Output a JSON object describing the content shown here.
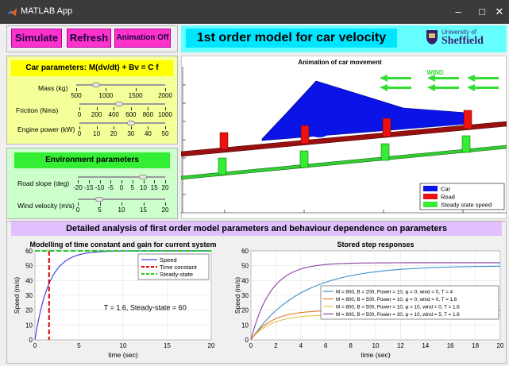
{
  "window": {
    "title": "MATLAB App",
    "minimize": "–",
    "maximize": "□",
    "close": "✕"
  },
  "buttons": {
    "simulate": "Simulate",
    "refresh": "Refresh",
    "animation": "Animation Off"
  },
  "header": {
    "title": "1st order model for car velocity",
    "logo_line1": "University of",
    "logo_line2": "Sheffield"
  },
  "car_params": {
    "title": "Car parameters: M(dv/dt) + Bv = C f",
    "mass": {
      "label": "Mass (kg)",
      "ticks": [
        "500",
        "1000",
        "1500",
        "2000"
      ]
    },
    "friction": {
      "label": "Friction (Nms)",
      "ticks": [
        "0",
        "200",
        "400",
        "600",
        "800",
        "1000"
      ]
    },
    "engine": {
      "label": "Engine power (kW)",
      "ticks": [
        "0",
        "10",
        "20",
        "30",
        "40",
        "50"
      ]
    }
  },
  "env_params": {
    "title": "Environment parameters",
    "slope": {
      "label": "Road slope (deg)",
      "ticks": [
        "-20",
        "-15",
        "-10",
        "-5",
        "0",
        "5",
        "10",
        "15",
        "20"
      ]
    },
    "wind": {
      "label": "Wind velocity (m/s)",
      "ticks": [
        "0",
        "5",
        "10",
        "15",
        "20"
      ]
    }
  },
  "animation": {
    "title": "Animation of car movement",
    "wind_label": "WIND",
    "legend": [
      "Car",
      "Road",
      "Steady state speed"
    ]
  },
  "analysis": {
    "title": "Detailed analysis of first order model parameters and behaviour dependence on parameters"
  },
  "chart_data": [
    {
      "type": "line",
      "title": "Modelling of time constant and gain for current system",
      "xlabel": "time (sec)",
      "ylabel": "Speed (m/s)",
      "xlim": [
        0,
        20
      ],
      "ylim": [
        0,
        60
      ],
      "xticks": [
        "0",
        "5",
        "10",
        "15",
        "20"
      ],
      "yticks": [
        "0",
        "10",
        "20",
        "30",
        "40",
        "50",
        "60"
      ],
      "series": [
        {
          "name": "Speed",
          "color": "#4444dd",
          "type": "first-order",
          "T": 1.6,
          "gain": 60
        },
        {
          "name": "Time constant",
          "color": "#dd0000",
          "x": 1.6
        },
        {
          "name": "Steady-state",
          "color": "#22cc22",
          "y": 60
        }
      ],
      "annotation": "T = 1.6, Steady-state = 60",
      "legend": "top-right"
    },
    {
      "type": "line",
      "title": "Stored step responses",
      "xlabel": "time (sec)",
      "ylabel": "Speed (m/s)",
      "xlim": [
        0,
        20
      ],
      "ylim": [
        0,
        60
      ],
      "xticks": [
        "0",
        "2",
        "4",
        "6",
        "8",
        "10",
        "12",
        "14",
        "16",
        "18",
        "20"
      ],
      "yticks": [
        "0",
        "10",
        "20",
        "30",
        "40",
        "50",
        "60"
      ],
      "series": [
        {
          "name": "M = 800, B = 200, Power = 10, φ = 0, wind = 0, T = 4",
          "color": "#3a8fc8",
          "T": 4,
          "gain": 50
        },
        {
          "name": "M = 800, B = 500, Power = 10, φ = 0, wind = 0, T = 1.6",
          "color": "#e07b2a",
          "T": 1.6,
          "gain": 20
        },
        {
          "name": "M = 800, B = 500, Power = 10, φ = 10, wind = 0, T = 1.6",
          "color": "#e8c04a",
          "T": 1.6,
          "gain": 17
        },
        {
          "name": "M = 800, B = 500, Power = 30, φ = 10, wind = 5, T = 1.6",
          "color": "#8a3fa6",
          "T": 1.6,
          "gain": 52
        }
      ],
      "legend": "center-right"
    }
  ]
}
